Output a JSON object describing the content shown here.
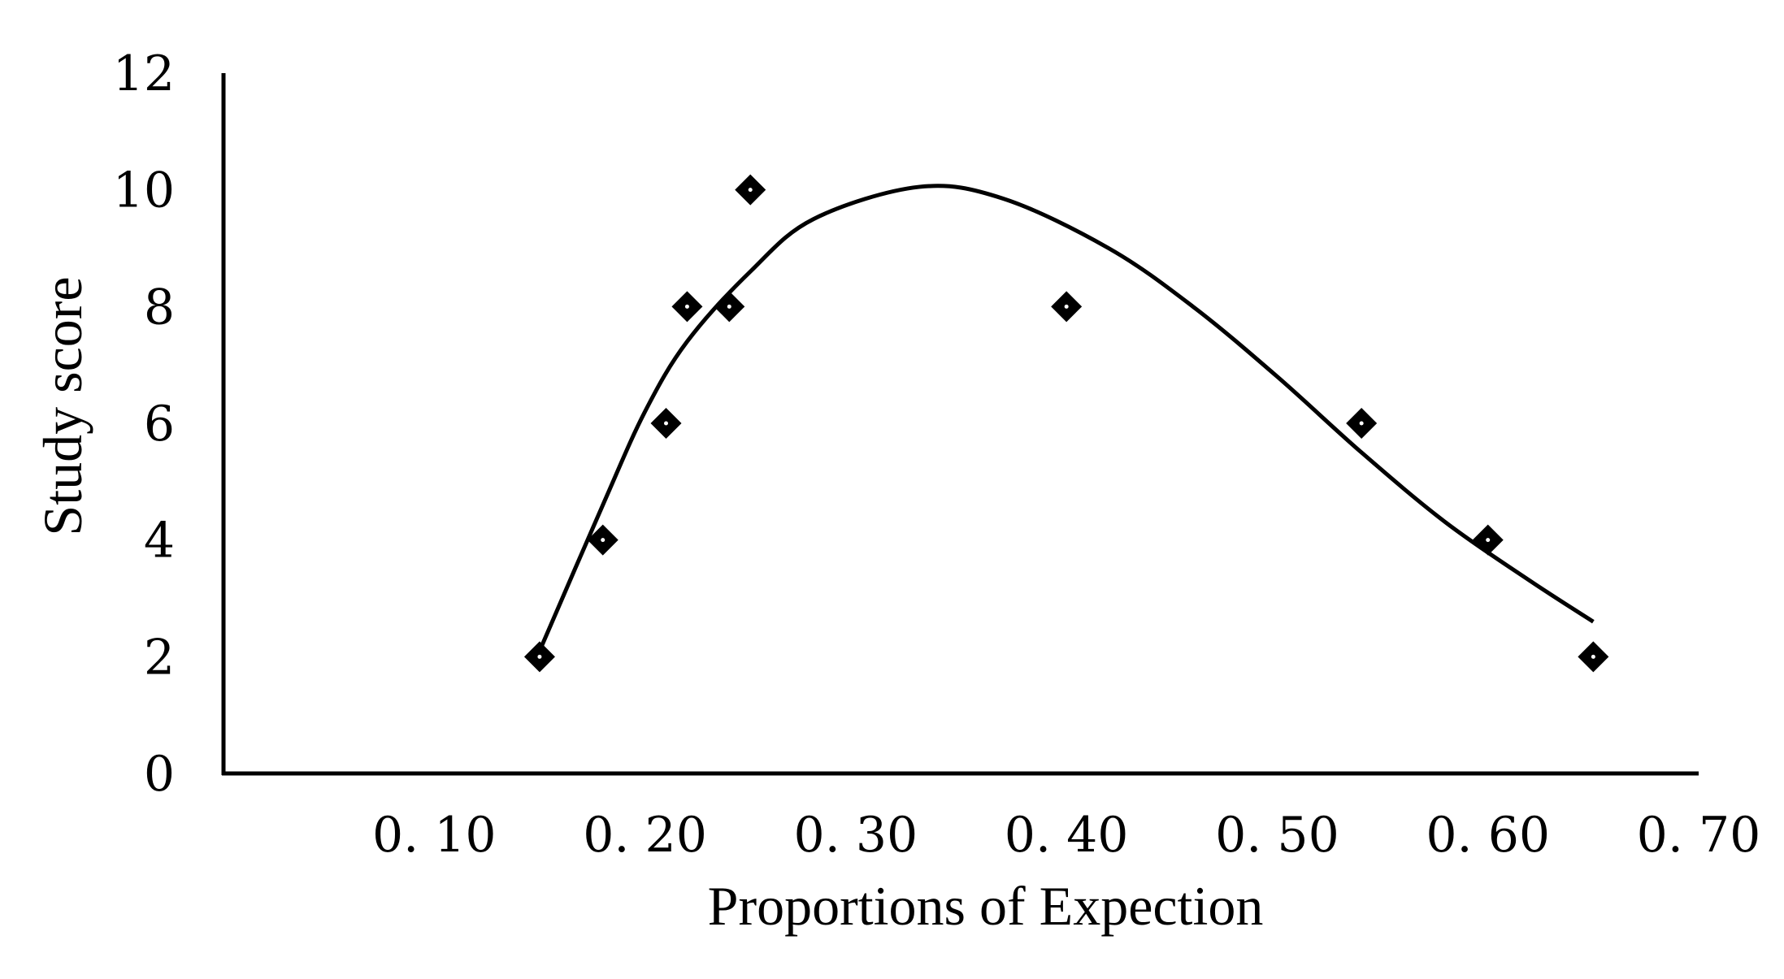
{
  "chart_data": {
    "type": "scatter",
    "title": "",
    "xlabel": "Proportions of Expection",
    "ylabel": "Study score",
    "xlim": [
      0.0,
      0.7
    ],
    "ylim": [
      0,
      12
    ],
    "x_ticks": [
      0.1,
      0.2,
      0.3,
      0.4,
      0.5,
      0.6,
      0.7
    ],
    "x_tick_labels": [
      "0. 10",
      "0. 20",
      "0. 30",
      "0. 40",
      "0. 50",
      "0. 60",
      "0. 70"
    ],
    "y_ticks": [
      0,
      2,
      4,
      6,
      8,
      10,
      12
    ],
    "y_tick_labels": [
      "0",
      "2",
      "4",
      "6",
      "8",
      "10",
      "12"
    ],
    "grid": false,
    "series": [
      {
        "marker": "diamond",
        "color": "#000000",
        "points": [
          {
            "x": 0.15,
            "y": 2
          },
          {
            "x": 0.18,
            "y": 4
          },
          {
            "x": 0.21,
            "y": 6
          },
          {
            "x": 0.22,
            "y": 8
          },
          {
            "x": 0.24,
            "y": 8
          },
          {
            "x": 0.25,
            "y": 10
          },
          {
            "x": 0.4,
            "y": 8
          },
          {
            "x": 0.54,
            "y": 6
          },
          {
            "x": 0.6,
            "y": 4
          },
          {
            "x": 0.65,
            "y": 2
          }
        ]
      }
    ],
    "trendline": {
      "type": "smooth-curve",
      "color": "#000000",
      "points": [
        {
          "x": 0.15,
          "y": 2.1
        },
        {
          "x": 0.18,
          "y": 4.6
        },
        {
          "x": 0.2,
          "y": 6.2
        },
        {
          "x": 0.22,
          "y": 7.4
        },
        {
          "x": 0.25,
          "y": 8.6
        },
        {
          "x": 0.28,
          "y": 9.5
        },
        {
          "x": 0.33,
          "y": 10.05
        },
        {
          "x": 0.37,
          "y": 9.85
        },
        {
          "x": 0.42,
          "y": 9.0
        },
        {
          "x": 0.46,
          "y": 8.0
        },
        {
          "x": 0.5,
          "y": 6.8
        },
        {
          "x": 0.54,
          "y": 5.5
        },
        {
          "x": 0.58,
          "y": 4.3
        },
        {
          "x": 0.62,
          "y": 3.3
        },
        {
          "x": 0.65,
          "y": 2.6
        }
      ]
    }
  }
}
